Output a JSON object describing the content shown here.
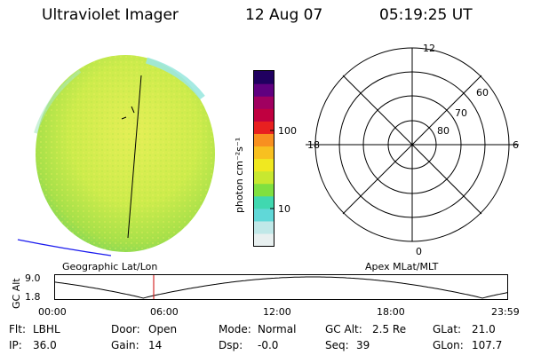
{
  "header": {
    "title": "Ultraviolet Imager",
    "date": "12 Aug 07",
    "time": "05:19:25 UT"
  },
  "earth_image": {
    "colors": {
      "base": "#c8ec4a",
      "light": "#e8f05a",
      "green": "#8ad84a",
      "cyan": "#7ee8c8"
    }
  },
  "colorbar": {
    "unit_label": "photon cm⁻²s⁻¹",
    "ticks": [
      {
        "label": "100",
        "value": 100
      },
      {
        "label": "10",
        "value": 10
      }
    ],
    "colors": [
      "#e8f0f0",
      "#c0e8e8",
      "#60d8d8",
      "#40d8b0",
      "#80e040",
      "#c8e830",
      "#f0e820",
      "#f8c020",
      "#f89020",
      "#e82020",
      "#c00040",
      "#a00060",
      "#600080",
      "#200060"
    ]
  },
  "polar_plot": {
    "mlt_labels": {
      "top": "12",
      "left": "18",
      "right": "6",
      "bottom": "0"
    },
    "lat_labels": [
      "60",
      "70",
      "80"
    ]
  },
  "footer_labels": {
    "geographic": "Geographic Lat/Lon",
    "apex": "Apex MLat/MLT"
  },
  "altitude_plot": {
    "ylabel": "GC Alt",
    "yticks": [
      "9.0",
      "1.8"
    ],
    "xticks": [
      "00:00",
      "06:00",
      "12:00",
      "18:00",
      "23:59"
    ],
    "marker_color": "#cc0000"
  },
  "info": [
    {
      "label": "Flt:",
      "value": "LBHL"
    },
    {
      "label": "Door:",
      "value": "Open"
    },
    {
      "label": "Mode:",
      "value": "Normal"
    },
    {
      "label": "GC Alt:",
      "value": "2.5 Re"
    },
    {
      "label": "GLat:",
      "value": "21.0"
    },
    {
      "label": "IP:",
      "value": "36.0"
    },
    {
      "label": "Gain:",
      "value": "14"
    },
    {
      "label": "Dsp:",
      "value": "-0.0"
    },
    {
      "label": "Seq:",
      "value": "39"
    },
    {
      "label": "GLon:",
      "value": "107.7"
    }
  ]
}
